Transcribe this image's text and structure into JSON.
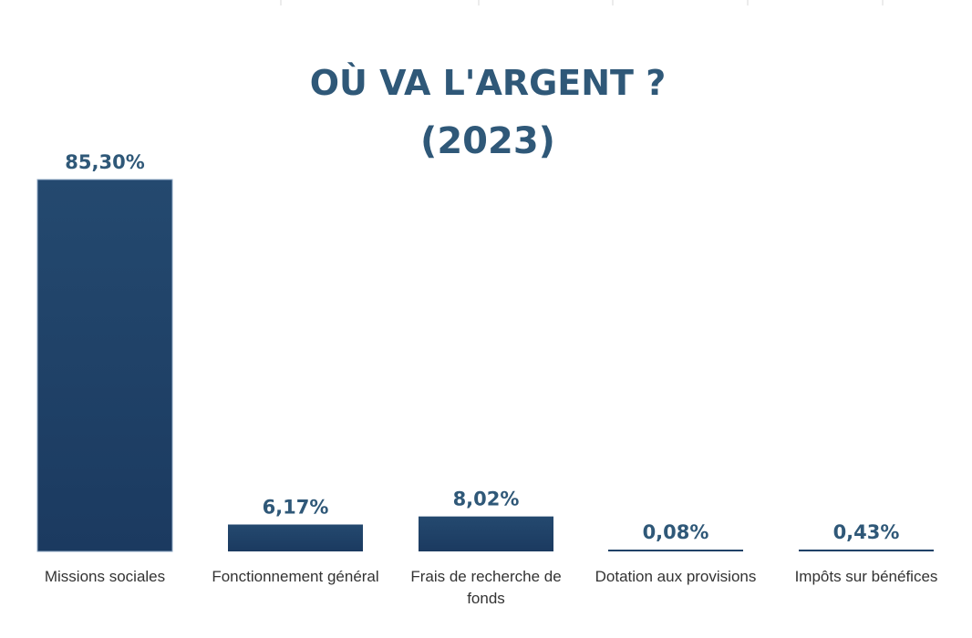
{
  "chart_data": {
    "type": "bar",
    "title": "OÙ VA L'ARGENT ?",
    "subtitle": "(2023)",
    "categories": [
      "Missions sociales",
      "Fonctionnement général",
      "Frais de recherche de fonds",
      "Dotation aux provisions",
      "Impôts sur bénéfices"
    ],
    "values": [
      85.3,
      6.17,
      8.02,
      0.08,
      0.43
    ],
    "value_labels": [
      "85,30%",
      "6,17%",
      "8,02%",
      "0,08%",
      "0,43%"
    ],
    "xlabel": "",
    "ylabel": "",
    "ylim": [
      0,
      85.3
    ],
    "grid": false,
    "legend": "none",
    "colors": {
      "bar": "#1f3f66",
      "title": "#2f5878",
      "value_label": "#2f5878",
      "category_label": "#333333",
      "gridline": "#d9d9d9"
    }
  }
}
